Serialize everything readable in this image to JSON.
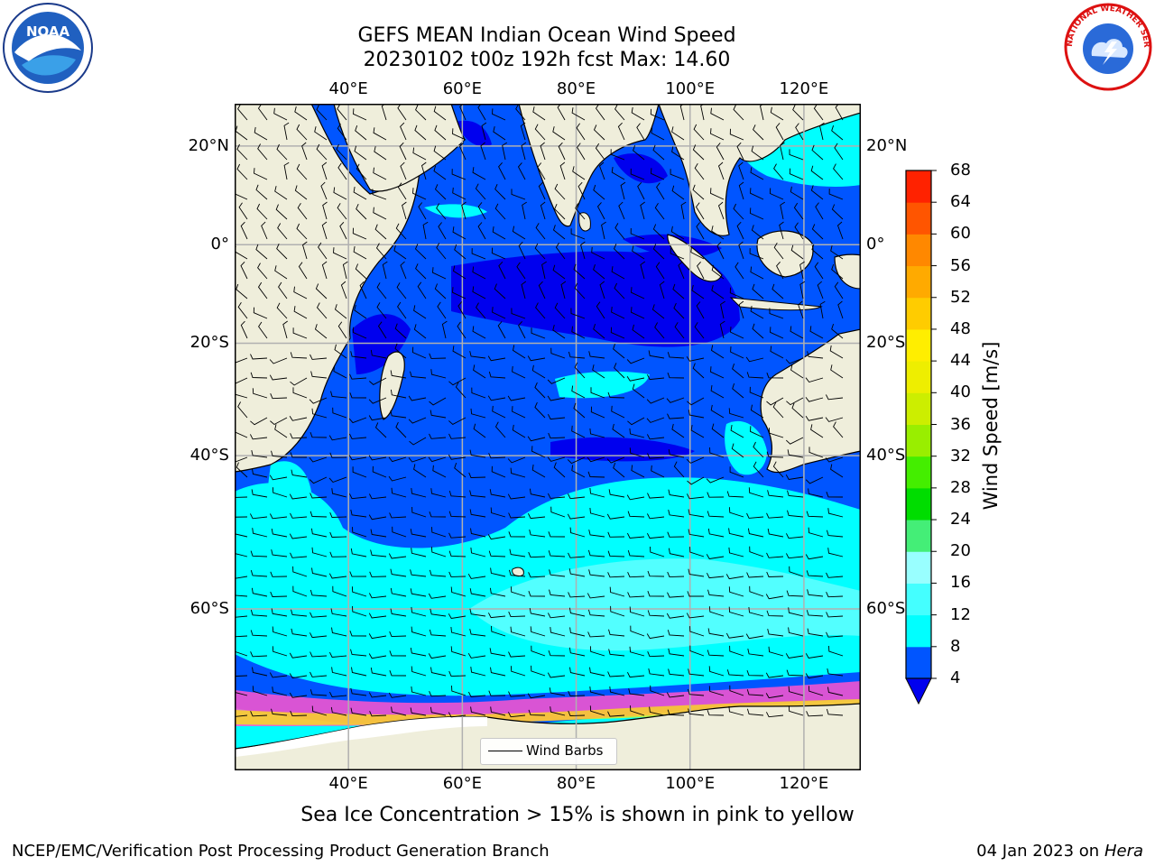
{
  "title_line1": "GEFS MEAN Indian Ocean Wind Speed",
  "title_line2": "20230102 t00z 192h fcst   Max: 14.60",
  "lon_ticks": [
    {
      "label": "40°E",
      "value": 40
    },
    {
      "label": "60°E",
      "value": 60
    },
    {
      "label": "80°E",
      "value": 80
    },
    {
      "label": "100°E",
      "value": 100
    },
    {
      "label": "120°E",
      "value": 120
    }
  ],
  "lat_ticks": [
    {
      "label": "20°N",
      "value": 20
    },
    {
      "label": "0°",
      "value": 0
    },
    {
      "label": "20°S",
      "value": -20
    },
    {
      "label": "40°S",
      "value": -40
    },
    {
      "label": "60°S",
      "value": -60
    }
  ],
  "colorbar": {
    "label": "Wind Speed [m/s]",
    "ticks": [
      "4",
      "8",
      "12",
      "16",
      "20",
      "24",
      "28",
      "32",
      "36",
      "40",
      "44",
      "48",
      "52",
      "56",
      "60",
      "64",
      "68"
    ],
    "colors": [
      "#0055ff",
      "#00ffff",
      "#44ffff",
      "#99ffff",
      "#44ee77",
      "#00dd00",
      "#44ee00",
      "#99ee00",
      "#ccee00",
      "#eeee00",
      "#ffee00",
      "#ffcc00",
      "#ffaa00",
      "#ff8800",
      "#ff5500",
      "#ff2200"
    ],
    "under_color": "#0000ee"
  },
  "legend": {
    "label": "Wind Barbs"
  },
  "caption": "Sea Ice Concentration > 15% is shown in pink to yellow",
  "footer_left": "NCEP/EMC/Verification Post Processing Product Generation Branch",
  "footer_right_date": "04 Jan 2023 on ",
  "footer_right_host": "Hera",
  "logos": {
    "left": "NOAA",
    "right": "NATIONAL WEATHER SERVICE"
  },
  "palette": {
    "land": "#efeedb",
    "deep_blue": "#0000ee",
    "blue": "#0055ff",
    "cyan": "#00ffff",
    "light_cyan": "#99ffff"
  }
}
